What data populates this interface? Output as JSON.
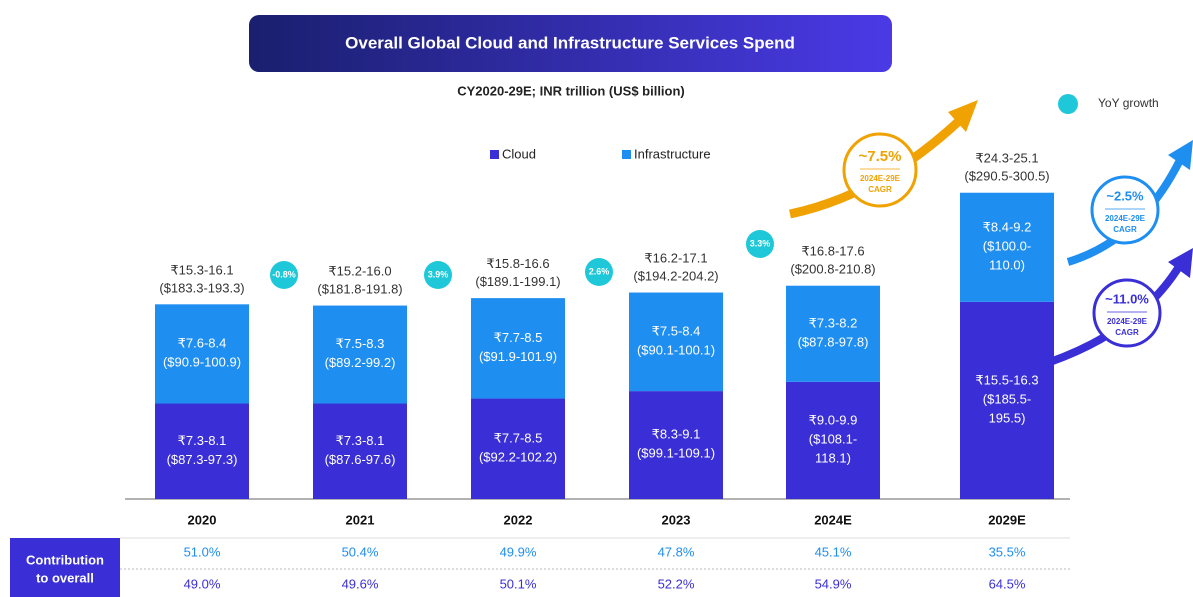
{
  "chart_data": {
    "type": "stacked_bar",
    "title": "Overall Global Cloud and Infrastructure Services Spend",
    "subtitle": "CY2020-29E; INR trillion (US$ billion)",
    "categories": [
      "2020",
      "2021",
      "2022",
      "2023",
      "2024E",
      "2029E"
    ],
    "series": [
      {
        "name": "Cloud",
        "color": "#3a2fd6",
        "values": [
          7.7,
          7.7,
          8.1,
          8.7,
          9.45,
          15.9
        ],
        "value_labels": [
          "₹7.3-8.1\n($87.3-97.3)",
          "₹7.3-8.1\n($87.6-97.6)",
          "₹7.7-8.5\n($92.2-102.2)",
          "₹8.3-9.1\n($99.1-109.1)",
          "₹9.0-9.9\n($108.1-\n118.1)",
          "₹15.5-16.3\n($185.5-\n195.5)"
        ]
      },
      {
        "name": "Infrastructure",
        "color": "#1f8ef1",
        "values": [
          8.0,
          7.9,
          8.1,
          7.95,
          7.75,
          8.8
        ],
        "value_labels": [
          "₹7.6-8.4\n($90.9-100.9)",
          "₹7.5-8.3\n($89.2-99.2)",
          "₹7.7-8.5\n($91.9-101.9)",
          "₹7.5-8.4\n($90.1-100.1)",
          "₹7.3-8.2\n($87.8-97.8)",
          "₹8.4-9.2\n($100.0-\n110.0)"
        ]
      }
    ],
    "total_labels": [
      "₹15.3-16.1\n($183.3-193.3)",
      "₹15.2-16.0\n($181.8-191.8)",
      "₹15.8-16.6\n($189.1-199.1)",
      "₹16.2-17.1\n($194.2-204.2)",
      "₹16.8-17.6\n($200.8-210.8)",
      "₹24.3-25.1\n($290.5-300.5)"
    ],
    "yoy": {
      "name": "YoY growth",
      "color": "#1ec8d8",
      "labels": [
        "-0.8%",
        "3.9%",
        "2.6%",
        "3.3%"
      ]
    },
    "cagr": [
      {
        "value": "~7.5%",
        "period": "2024E-29E",
        "label": "CAGR",
        "color": "#f0a202"
      },
      {
        "value": "~2.5%",
        "period": "2024E-29E",
        "label": "CAGR",
        "color": "#1f8ef1"
      },
      {
        "value": "~11.0%",
        "period": "2024E-29E",
        "label": "CAGR",
        "color": "#3a2fd6"
      }
    ],
    "contribution": {
      "header": [
        "Contribution",
        "to overall"
      ],
      "rows": [
        {
          "color": "#1f8ef1",
          "values": [
            "51.0%",
            "50.4%",
            "49.9%",
            "47.8%",
            "45.1%",
            "35.5%"
          ]
        },
        {
          "color": "#3a2fd6",
          "values": [
            "49.0%",
            "49.6%",
            "50.1%",
            "52.2%",
            "54.9%",
            "64.5%"
          ]
        }
      ]
    }
  }
}
